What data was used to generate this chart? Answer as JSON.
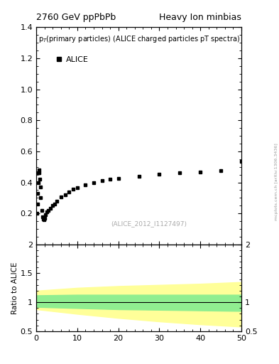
{
  "title_left": "2760 GeV ppPbPb",
  "title_right": "Heavy Ion minbias",
  "upper_title": "p$_T$(primary particles) (ALICE charged particles pT spectra)",
  "legend_label": "ALICE",
  "citation": "(ALICE_2012_I1127497)",
  "right_label": "mcplots.cern.ch [arXiv:1306.3436]",
  "lower_ylabel": "Ratio to ALICE",
  "upper_ylim": [
    0.0,
    1.4
  ],
  "upper_yticks": [
    0.2,
    0.4,
    0.6,
    0.8,
    1.0,
    1.2,
    1.4
  ],
  "lower_ylim": [
    0.5,
    2.0
  ],
  "lower_yticks": [
    0.5,
    1.0,
    1.5,
    2.0
  ],
  "lower_ytick_labels": [
    "0.5",
    "1",
    "1.5",
    "2"
  ],
  "xlim": [
    0,
    50
  ],
  "xticks": [
    0,
    10,
    20,
    30,
    40,
    50
  ],
  "data_x": [
    0.15,
    0.25,
    0.35,
    0.45,
    0.55,
    0.65,
    0.75,
    0.85,
    0.95,
    1.1,
    1.3,
    1.5,
    1.7,
    1.9,
    2.1,
    2.3,
    2.6,
    3.0,
    3.5,
    4.0,
    4.5,
    5.0,
    6.0,
    7.0,
    8.0,
    9.0,
    10.0,
    12.0,
    14.0,
    16.0,
    18.0,
    20.0,
    25.0,
    30.0,
    35.0,
    40.0,
    45.0,
    50.0
  ],
  "data_y": [
    0.2,
    0.26,
    0.33,
    0.4,
    0.46,
    0.48,
    0.46,
    0.42,
    0.37,
    0.3,
    0.22,
    0.18,
    0.165,
    0.16,
    0.17,
    0.19,
    0.21,
    0.22,
    0.235,
    0.25,
    0.26,
    0.28,
    0.305,
    0.32,
    0.34,
    0.355,
    0.365,
    0.385,
    0.4,
    0.41,
    0.42,
    0.425,
    0.44,
    0.455,
    0.46,
    0.465,
    0.475,
    0.535
  ],
  "ratio_x": [
    0,
    10,
    20,
    30,
    40,
    50
  ],
  "green_upper": [
    1.12,
    1.13,
    1.13,
    1.13,
    1.13,
    1.13
  ],
  "green_lower": [
    0.92,
    0.9,
    0.88,
    0.87,
    0.86,
    0.85
  ],
  "yellow_upper": [
    1.2,
    1.25,
    1.28,
    1.3,
    1.32,
    1.35
  ],
  "yellow_lower": [
    0.88,
    0.8,
    0.73,
    0.67,
    0.62,
    0.58
  ],
  "ratio_line": 1.0,
  "marker": "s",
  "marker_color": "black",
  "marker_size": 3.5,
  "green_color": "#90ee90",
  "yellow_color": "#ffff99",
  "background_color": "white"
}
